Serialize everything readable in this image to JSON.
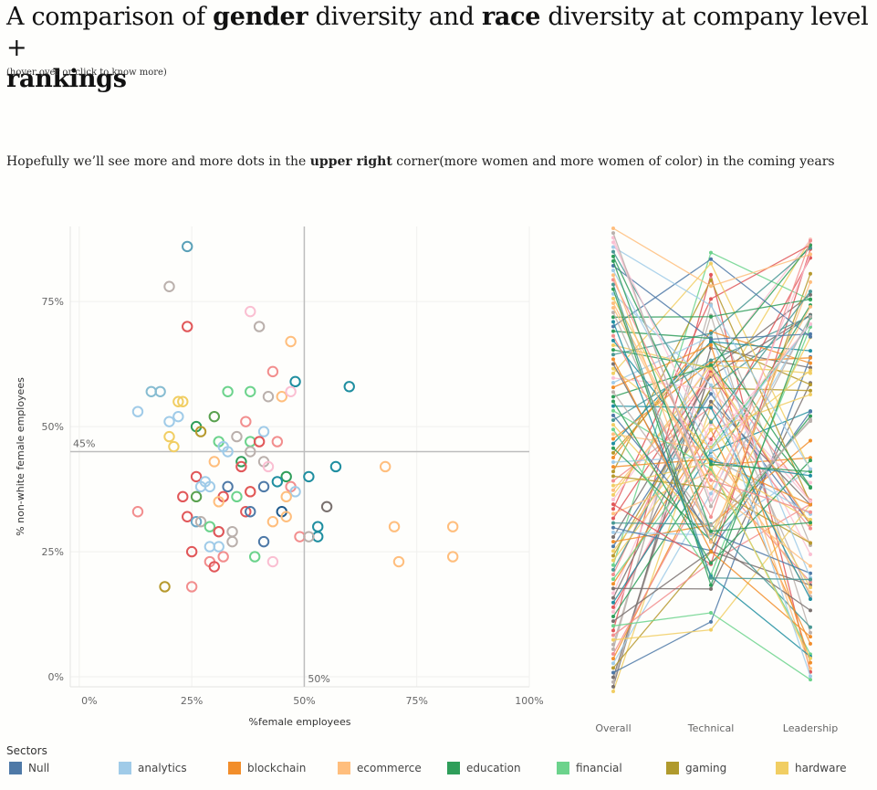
{
  "header": {
    "title_prefix": "A comparison of ",
    "title_gender": "gender",
    "title_mid": " diversity and ",
    "title_race": "race",
    "title_suffix": " diversity at company level +",
    "title_line2": "rankings",
    "hint": "(hover over or click to know more)",
    "subtitle_prefix": "Hopefully we’ll see more and more dots in the ",
    "subtitle_bold": "upper right",
    "subtitle_suffix": " corner(more women and more women of color) in the coming years"
  },
  "colors": {
    "Null": "#4e79a7",
    "analytics": "#a0cbe8",
    "blockchain": "#f28e2b",
    "ecommerce": "#ffbe7d",
    "education": "#59a14f",
    "financial": "#8cd17d",
    "gaming": "#b6992d",
    "hardware": "#f1ce63",
    "teal": "#499894",
    "red": "#e15759",
    "pink": "#ff9d9a",
    "gray": "#79706e",
    "lightgray": "#bab0ac",
    "lightpink": "#fabfd2",
    "tealdark": "#1f8ea0"
  },
  "legend": {
    "title": "Sectors",
    "items": [
      {
        "label": "Null",
        "color": "#4e79a7"
      },
      {
        "label": "analytics",
        "color": "#a0cbe8"
      },
      {
        "label": "blockchain",
        "color": "#f28e2b"
      },
      {
        "label": "ecommerce",
        "color": "#ffbe7d"
      },
      {
        "label": "education",
        "color": "#2f9e5a"
      },
      {
        "label": "financial",
        "color": "#6cd38c"
      },
      {
        "label": "gaming",
        "color": "#b09a2d"
      },
      {
        "label": "hardware",
        "color": "#f1ce63"
      }
    ]
  },
  "chart_data": [
    {
      "type": "scatter",
      "title": "",
      "xlabel": "%female employees",
      "ylabel": "% non-white female employees",
      "xlim": [
        -0.02,
        1.0
      ],
      "ylim": [
        -0.02,
        0.9
      ],
      "x_ticks": [
        "0%",
        "25%",
        "50%",
        "75%",
        "100%"
      ],
      "y_ticks": [
        "0%",
        "25%",
        "50%",
        "75%"
      ],
      "reference_lines": [
        {
          "axis": "y",
          "value": 0.45,
          "label": "45%"
        },
        {
          "axis": "x",
          "value": 0.5,
          "label": "50%"
        }
      ],
      "points": [
        {
          "x": 0.24,
          "y": 0.86,
          "c": "#5aa0b8"
        },
        {
          "x": 0.2,
          "y": 0.78,
          "c": "#bab0ac"
        },
        {
          "x": 0.38,
          "y": 0.73,
          "c": "#fabfd2"
        },
        {
          "x": 0.24,
          "y": 0.7,
          "c": "#e15759"
        },
        {
          "x": 0.4,
          "y": 0.7,
          "c": "#bab0ac"
        },
        {
          "x": 0.47,
          "y": 0.67,
          "c": "#ffbe7d"
        },
        {
          "x": 0.43,
          "y": 0.61,
          "c": "#f28e8e"
        },
        {
          "x": 0.48,
          "y": 0.59,
          "c": "#1f8ea0"
        },
        {
          "x": 0.6,
          "y": 0.58,
          "c": "#1f8ea0"
        },
        {
          "x": 0.16,
          "y": 0.57,
          "c": "#86bcd1"
        },
        {
          "x": 0.18,
          "y": 0.57,
          "c": "#86bcd1"
        },
        {
          "x": 0.33,
          "y": 0.57,
          "c": "#6cd38c"
        },
        {
          "x": 0.38,
          "y": 0.57,
          "c": "#6cd38c"
        },
        {
          "x": 0.42,
          "y": 0.56,
          "c": "#bab0ac"
        },
        {
          "x": 0.45,
          "y": 0.56,
          "c": "#ffbe7d"
        },
        {
          "x": 0.47,
          "y": 0.57,
          "c": "#fabfd2"
        },
        {
          "x": 0.22,
          "y": 0.55,
          "c": "#f1ce63"
        },
        {
          "x": 0.23,
          "y": 0.55,
          "c": "#f1ce63"
        },
        {
          "x": 0.13,
          "y": 0.53,
          "c": "#a0cbe8"
        },
        {
          "x": 0.22,
          "y": 0.52,
          "c": "#a0cbe8"
        },
        {
          "x": 0.2,
          "y": 0.51,
          "c": "#a0cbe8"
        },
        {
          "x": 0.3,
          "y": 0.52,
          "c": "#59a14f"
        },
        {
          "x": 0.37,
          "y": 0.51,
          "c": "#f28e8e"
        },
        {
          "x": 0.26,
          "y": 0.5,
          "c": "#2f9e5a"
        },
        {
          "x": 0.27,
          "y": 0.49,
          "c": "#b6992d"
        },
        {
          "x": 0.41,
          "y": 0.49,
          "c": "#a0cbe8"
        },
        {
          "x": 0.2,
          "y": 0.48,
          "c": "#f1ce63"
        },
        {
          "x": 0.21,
          "y": 0.46,
          "c": "#f1ce63"
        },
        {
          "x": 0.35,
          "y": 0.48,
          "c": "#bab0ac"
        },
        {
          "x": 0.31,
          "y": 0.47,
          "c": "#6cd38c"
        },
        {
          "x": 0.38,
          "y": 0.47,
          "c": "#6cd38c"
        },
        {
          "x": 0.4,
          "y": 0.47,
          "c": "#e15759"
        },
        {
          "x": 0.44,
          "y": 0.47,
          "c": "#f28e8e"
        },
        {
          "x": 0.32,
          "y": 0.46,
          "c": "#a0cbe8"
        },
        {
          "x": 0.33,
          "y": 0.45,
          "c": "#a0cbe8"
        },
        {
          "x": 0.38,
          "y": 0.45,
          "c": "#bab0ac"
        },
        {
          "x": 0.3,
          "y": 0.43,
          "c": "#ffbe7d"
        },
        {
          "x": 0.36,
          "y": 0.43,
          "c": "#2f9e5a"
        },
        {
          "x": 0.41,
          "y": 0.43,
          "c": "#bab0ac"
        },
        {
          "x": 0.36,
          "y": 0.42,
          "c": "#e15759"
        },
        {
          "x": 0.42,
          "y": 0.42,
          "c": "#fabfd2"
        },
        {
          "x": 0.57,
          "y": 0.42,
          "c": "#1f8ea0"
        },
        {
          "x": 0.68,
          "y": 0.42,
          "c": "#ffbe7d"
        },
        {
          "x": 0.26,
          "y": 0.4,
          "c": "#e15759"
        },
        {
          "x": 0.46,
          "y": 0.4,
          "c": "#2f9e5a"
        },
        {
          "x": 0.51,
          "y": 0.4,
          "c": "#1f8ea0"
        },
        {
          "x": 0.27,
          "y": 0.38,
          "c": "#a0cbe8"
        },
        {
          "x": 0.28,
          "y": 0.39,
          "c": "#a0cbe8"
        },
        {
          "x": 0.33,
          "y": 0.38,
          "c": "#4e79a7"
        },
        {
          "x": 0.41,
          "y": 0.38,
          "c": "#4e79a7"
        },
        {
          "x": 0.44,
          "y": 0.39,
          "c": "#1f8ea0"
        },
        {
          "x": 0.47,
          "y": 0.38,
          "c": "#f28e8e"
        },
        {
          "x": 0.48,
          "y": 0.37,
          "c": "#a0cbe8"
        },
        {
          "x": 0.38,
          "y": 0.37,
          "c": "#ffbe7d"
        },
        {
          "x": 0.29,
          "y": 0.38,
          "c": "#a0cbe8"
        },
        {
          "x": 0.23,
          "y": 0.36,
          "c": "#e15759"
        },
        {
          "x": 0.26,
          "y": 0.36,
          "c": "#59a14f"
        },
        {
          "x": 0.32,
          "y": 0.36,
          "c": "#e15759"
        },
        {
          "x": 0.35,
          "y": 0.36,
          "c": "#6cd38c"
        },
        {
          "x": 0.38,
          "y": 0.37,
          "c": "#e15759"
        },
        {
          "x": 0.31,
          "y": 0.35,
          "c": "#ffbe7d"
        },
        {
          "x": 0.46,
          "y": 0.36,
          "c": "#ffbe7d"
        },
        {
          "x": 0.13,
          "y": 0.33,
          "c": "#f28e8e"
        },
        {
          "x": 0.37,
          "y": 0.33,
          "c": "#e15759"
        },
        {
          "x": 0.38,
          "y": 0.33,
          "c": "#4e79a7"
        },
        {
          "x": 0.45,
          "y": 0.33,
          "c": "#1f5a8c"
        },
        {
          "x": 0.46,
          "y": 0.32,
          "c": "#ffbe7d"
        },
        {
          "x": 0.55,
          "y": 0.34,
          "c": "#79706e"
        },
        {
          "x": 0.24,
          "y": 0.32,
          "c": "#e15759"
        },
        {
          "x": 0.26,
          "y": 0.31,
          "c": "#6ba8c8"
        },
        {
          "x": 0.27,
          "y": 0.31,
          "c": "#bab0ac"
        },
        {
          "x": 0.29,
          "y": 0.3,
          "c": "#6cd38c"
        },
        {
          "x": 0.31,
          "y": 0.29,
          "c": "#bab0ac"
        },
        {
          "x": 0.31,
          "y": 0.29,
          "c": "#e15759"
        },
        {
          "x": 0.34,
          "y": 0.29,
          "c": "#bab0ac"
        },
        {
          "x": 0.43,
          "y": 0.31,
          "c": "#ffbe7d"
        },
        {
          "x": 0.53,
          "y": 0.3,
          "c": "#1f8ea0"
        },
        {
          "x": 0.53,
          "y": 0.28,
          "c": "#1f8ea0"
        },
        {
          "x": 0.49,
          "y": 0.28,
          "c": "#f28e8e"
        },
        {
          "x": 0.51,
          "y": 0.28,
          "c": "#bab0ac"
        },
        {
          "x": 0.7,
          "y": 0.3,
          "c": "#ffbe7d"
        },
        {
          "x": 0.83,
          "y": 0.3,
          "c": "#ffbe7d"
        },
        {
          "x": 0.34,
          "y": 0.27,
          "c": "#bab0ac"
        },
        {
          "x": 0.41,
          "y": 0.27,
          "c": "#4e79a7"
        },
        {
          "x": 0.25,
          "y": 0.25,
          "c": "#e15759"
        },
        {
          "x": 0.29,
          "y": 0.26,
          "c": "#a0cbe8"
        },
        {
          "x": 0.31,
          "y": 0.26,
          "c": "#a0cbe8"
        },
        {
          "x": 0.29,
          "y": 0.23,
          "c": "#f28e8e"
        },
        {
          "x": 0.3,
          "y": 0.22,
          "c": "#e15759"
        },
        {
          "x": 0.32,
          "y": 0.24,
          "c": "#f28e8e"
        },
        {
          "x": 0.39,
          "y": 0.24,
          "c": "#6cd38c"
        },
        {
          "x": 0.43,
          "y": 0.23,
          "c": "#fabfd2"
        },
        {
          "x": 0.71,
          "y": 0.23,
          "c": "#ffbe7d"
        },
        {
          "x": 0.83,
          "y": 0.24,
          "c": "#ffbe7d"
        },
        {
          "x": 0.19,
          "y": 0.18,
          "c": "#b6992d"
        },
        {
          "x": 0.25,
          "y": 0.18,
          "c": "#f28e8e"
        }
      ]
    },
    {
      "type": "line",
      "title": "",
      "categories": [
        "Overall",
        "Technical",
        "Leadership"
      ],
      "ylim": [
        0,
        1
      ],
      "note": "Slope/bump chart of company rankings (approx. 100 companies, values are normalized rank positions, 0 = bottom, 1 = top)",
      "series_colors": [
        "#1f8ea0",
        "#ffbe7d",
        "#a0cbe8",
        "#e15759",
        "#6cd38c",
        "#4e79a7",
        "#f28e8e",
        "#fabfd2",
        "#bab0ac",
        "#2f9e5a",
        "#f1ce63",
        "#499894",
        "#79706e",
        "#b6992d",
        "#f28e2b"
      ],
      "series_count": 100
    }
  ]
}
